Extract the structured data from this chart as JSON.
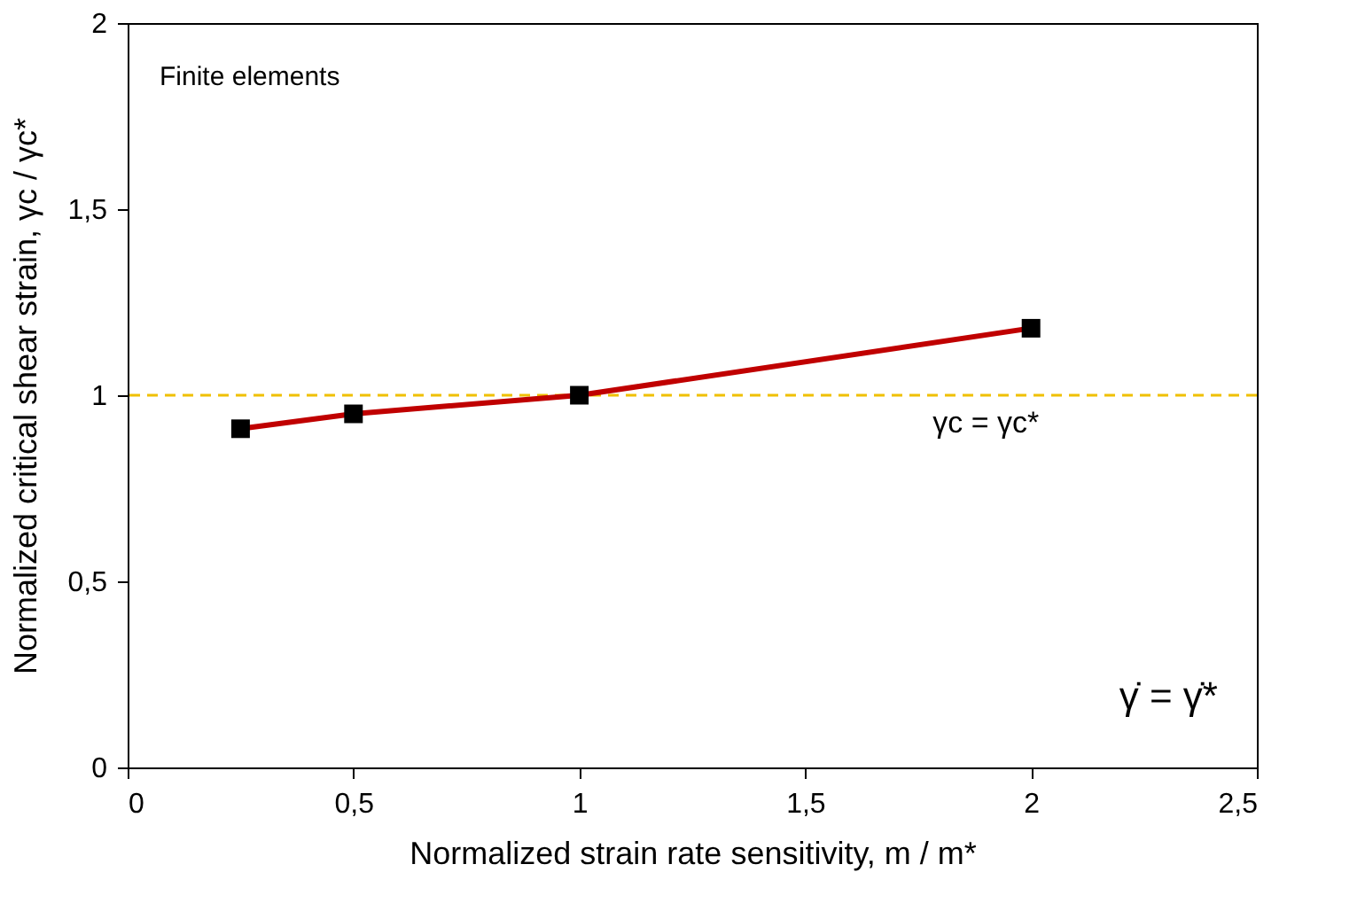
{
  "chart_data": {
    "type": "line",
    "xlabel": "Normalized strain rate sensitivity, m / m*",
    "ylabel": "Normalized critical shear strain, γc / γc*",
    "x": [
      0.25,
      0.5,
      1,
      2
    ],
    "series": [
      {
        "color": "#c00000",
        "values": [
          0.91,
          0.95,
          1.0,
          1.18
        ]
      }
    ],
    "marker": "square",
    "line_style": "solid",
    "xlim": [
      0,
      2.5
    ],
    "xticks": [
      0,
      {
        "value": 0.5,
        "label": "0,5"
      },
      1,
      {
        "value": 1.5,
        "label": "1,5"
      },
      2,
      {
        "value": 2.5,
        "label": "2,5"
      }
    ],
    "ylim": [
      0,
      2
    ],
    "yticks": [
      0,
      {
        "value": 0.5,
        "label": "0,5"
      },
      1,
      {
        "value": 1.5,
        "label": "1,5"
      },
      2
    ],
    "ref_lines": [
      {
        "axis": "y",
        "value": 1,
        "label": "γc = γc*",
        "color": "#f0c000",
        "line_style": "dashed"
      }
    ],
    "annotations": [
      "Finite elements",
      "γ̇  = γ̇*"
    ],
    "grid": false
  }
}
